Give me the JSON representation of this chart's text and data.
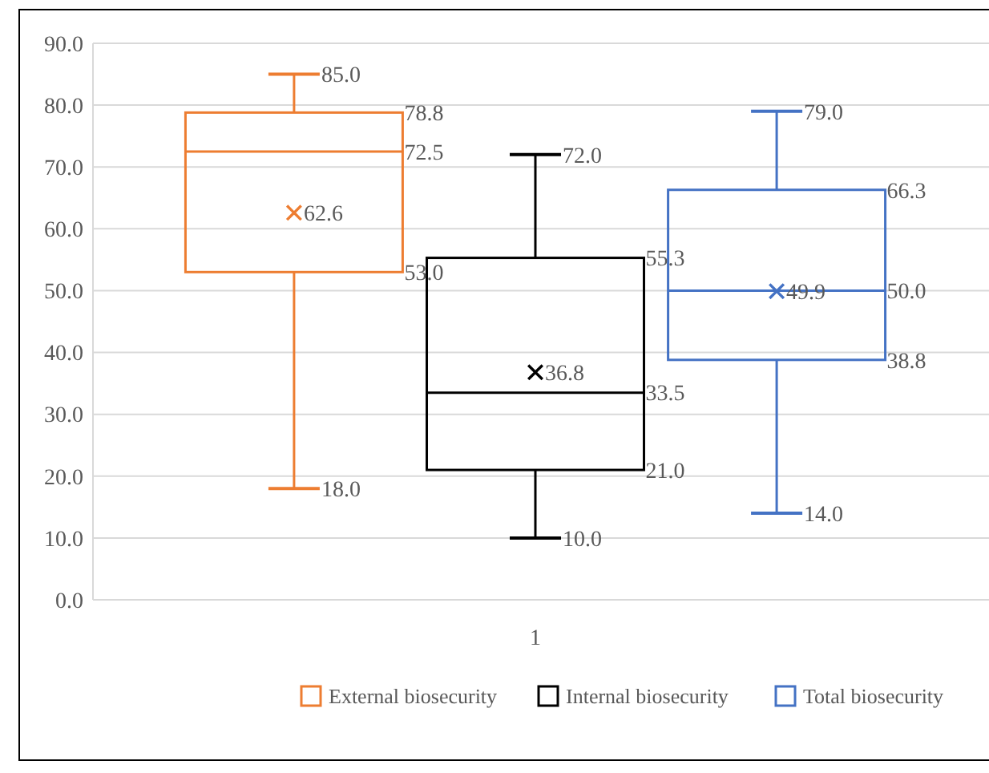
{
  "chart_data": {
    "type": "box",
    "categories": [
      "1"
    ],
    "series": [
      {
        "name": "External biosecurity",
        "color": "#ed7d31",
        "boxes": [
          {
            "low": 18.0,
            "q1": 53.0,
            "median": 72.5,
            "q3": 78.8,
            "high": 85.0,
            "mean": 62.6
          }
        ]
      },
      {
        "name": "Internal biosecurity",
        "color": "#000000",
        "boxes": [
          {
            "low": 10.0,
            "q1": 21.0,
            "median": 33.5,
            "q3": 55.3,
            "high": 72.0,
            "mean": 36.8
          }
        ]
      },
      {
        "name": "Total biosecurity",
        "color": "#4472c4",
        "boxes": [
          {
            "low": 14.0,
            "q1": 38.8,
            "median": 50.0,
            "q3": 66.3,
            "high": 79.0,
            "mean": 49.9
          }
        ]
      }
    ],
    "annotations": [
      "85.0",
      "78.8",
      "72.5",
      "62.6",
      "53.0",
      "18.0",
      "72.0",
      "55.3",
      "33.5",
      "36.8",
      "21.0",
      "10.0",
      "79.0",
      "66.3",
      "50.0",
      "49.9",
      "38.8",
      "14.0"
    ],
    "ylim": [
      0,
      90
    ],
    "yticks": [
      {
        "value": 0,
        "label": "0.0"
      },
      {
        "value": 10,
        "label": "10.0"
      },
      {
        "value": 20,
        "label": "20.0"
      },
      {
        "value": 30,
        "label": "30.0"
      },
      {
        "value": 40,
        "label": "40.0"
      },
      {
        "value": 50,
        "label": "50.0"
      },
      {
        "value": 60,
        "label": "60.0"
      },
      {
        "value": 70,
        "label": "70.0"
      },
      {
        "value": 80,
        "label": "80.0"
      },
      {
        "value": 90,
        "label": "90.0"
      }
    ],
    "grid": "y",
    "legend": "bottom",
    "marker": "cross"
  }
}
